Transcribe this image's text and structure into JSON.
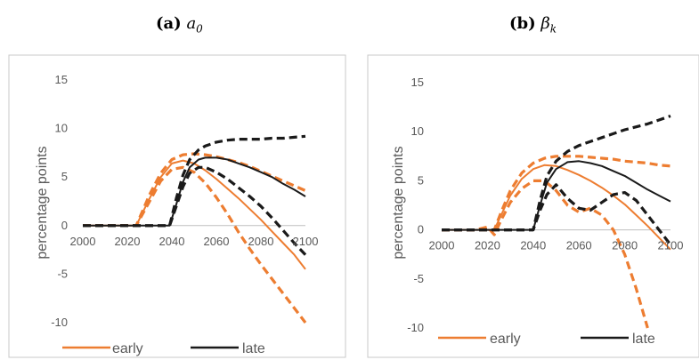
{
  "panels": {
    "a": {
      "label": "(a)",
      "symbol": "a",
      "sub": "0"
    },
    "b": {
      "label": "(b)",
      "symbol": "β",
      "sub": "k"
    }
  },
  "legend": {
    "early": "early",
    "late": "late"
  },
  "colors": {
    "early": "#ed7d31",
    "late": "#1a1a1a",
    "axis": "#bfbfbf",
    "frame": "#c8c8c8",
    "text": "#595959"
  },
  "chart_data": [
    {
      "type": "line",
      "title": "(a) a0",
      "ylabel": "percentage points",
      "xlim": [
        2000,
        2100
      ],
      "ylim": [
        -10,
        15
      ],
      "xticks": [
        2000,
        2020,
        2040,
        2060,
        2080,
        2100
      ],
      "yticks": [
        -10,
        -5,
        0,
        5,
        10,
        15
      ],
      "legend_position": "bottom",
      "series": [
        {
          "name": "early",
          "style": "solid",
          "color": "#ed7d31",
          "x": [
            2000,
            2024,
            2030,
            2035,
            2040,
            2045,
            2050,
            2055,
            2060,
            2065,
            2070,
            2075,
            2080,
            2085,
            2090,
            2095,
            2100
          ],
          "y": [
            0,
            0,
            2.8,
            5.0,
            6.4,
            6.7,
            6.4,
            5.7,
            4.8,
            3.8,
            2.8,
            1.7,
            0.6,
            -0.6,
            -1.8,
            -3.0,
            -4.5
          ]
        },
        {
          "name": "early",
          "style": "dashed",
          "color": "#ed7d31",
          "x": [
            2000,
            2024,
            2030,
            2035,
            2040,
            2045,
            2050,
            2055,
            2060,
            2065,
            2070,
            2075,
            2080,
            2085,
            2090,
            2095,
            2100
          ],
          "y": [
            0,
            0,
            3.2,
            5.4,
            6.8,
            7.3,
            7.4,
            7.3,
            7.1,
            6.8,
            6.5,
            6.1,
            5.6,
            5.1,
            4.6,
            4.1,
            3.6
          ]
        },
        {
          "name": "early",
          "style": "dashed",
          "color": "#ed7d31",
          "x": [
            2000,
            2024,
            2030,
            2035,
            2040,
            2045,
            2050,
            2055,
            2060,
            2065,
            2070,
            2075,
            2080,
            2085,
            2090,
            2095,
            2100
          ],
          "y": [
            0,
            0,
            2.5,
            4.6,
            5.8,
            6.0,
            5.5,
            4.4,
            2.9,
            1.2,
            -0.7,
            -2.4,
            -4.0,
            -5.5,
            -7.0,
            -8.5,
            -10.0
          ]
        },
        {
          "name": "late",
          "style": "solid",
          "color": "#1a1a1a",
          "x": [
            2000,
            2039,
            2042,
            2045,
            2048,
            2052,
            2055,
            2060,
            2065,
            2070,
            2075,
            2080,
            2085,
            2090,
            2095,
            2100
          ],
          "y": [
            0,
            0,
            2.2,
            4.5,
            6.0,
            6.8,
            7.0,
            7.0,
            6.8,
            6.4,
            6.0,
            5.5,
            5.0,
            4.3,
            3.7,
            3.0
          ]
        },
        {
          "name": "late",
          "style": "dashed",
          "color": "#1a1a1a",
          "x": [
            2000,
            2039,
            2042,
            2045,
            2048,
            2052,
            2055,
            2060,
            2065,
            2070,
            2075,
            2080,
            2085,
            2090,
            2095,
            2100
          ],
          "y": [
            0,
            0,
            2.8,
            5.2,
            6.8,
            7.8,
            8.2,
            8.6,
            8.8,
            8.9,
            8.9,
            8.9,
            9.0,
            9.0,
            9.1,
            9.2
          ]
        },
        {
          "name": "late",
          "style": "dashed",
          "color": "#1a1a1a",
          "x": [
            2000,
            2039,
            2042,
            2045,
            2048,
            2052,
            2055,
            2060,
            2065,
            2070,
            2075,
            2080,
            2085,
            2090,
            2095,
            2100
          ],
          "y": [
            0,
            0,
            2.0,
            4.0,
            5.4,
            6.0,
            6.0,
            5.5,
            4.8,
            3.9,
            3.0,
            2.0,
            0.8,
            -0.5,
            -1.8,
            -3.0
          ]
        }
      ]
    },
    {
      "type": "line",
      "title": "(b) βk",
      "ylabel": "percentage points",
      "xlim": [
        2000,
        2100
      ],
      "ylim": [
        -10,
        15
      ],
      "xticks": [
        2000,
        2020,
        2040,
        2060,
        2080,
        2100
      ],
      "yticks": [
        -10,
        -5,
        0,
        5,
        10,
        15
      ],
      "legend_position": "bottom",
      "series": [
        {
          "name": "early",
          "style": "solid",
          "color": "#ed7d31",
          "x": [
            2000,
            2023,
            2026,
            2030,
            2035,
            2040,
            2045,
            2050,
            2055,
            2060,
            2065,
            2070,
            2075,
            2080,
            2085,
            2090,
            2095,
            2100
          ],
          "y": [
            0,
            0,
            1.5,
            3.5,
            5.2,
            6.2,
            6.6,
            6.5,
            6.1,
            5.6,
            5.0,
            4.3,
            3.5,
            2.6,
            1.5,
            0.4,
            -0.8,
            -2.0
          ]
        },
        {
          "name": "early",
          "style": "dashed",
          "color": "#ed7d31",
          "x": [
            2000,
            2023,
            2026,
            2030,
            2035,
            2040,
            2045,
            2050,
            2055,
            2060,
            2065,
            2070,
            2075,
            2080,
            2085,
            2090,
            2095,
            2100
          ],
          "y": [
            0,
            0,
            1.8,
            4.0,
            5.8,
            6.8,
            7.3,
            7.5,
            7.5,
            7.5,
            7.4,
            7.3,
            7.2,
            7.0,
            6.9,
            6.8,
            6.6,
            6.5
          ]
        },
        {
          "name": "early",
          "style": "dashed",
          "color": "#ed7d31",
          "x": [
            2000,
            2015,
            2020,
            2023,
            2026,
            2030,
            2035,
            2040,
            2045,
            2050,
            2055,
            2060,
            2065,
            2070,
            2075,
            2080,
            2085,
            2090
          ],
          "y": [
            0,
            0,
            0.3,
            -0.5,
            1.0,
            2.8,
            4.2,
            5.0,
            5.0,
            4.0,
            2.5,
            1.8,
            2.2,
            1.5,
            0.0,
            -2.5,
            -6.0,
            -10.0
          ]
        },
        {
          "name": "late",
          "style": "solid",
          "color": "#1a1a1a",
          "x": [
            2000,
            2040,
            2043,
            2046,
            2050,
            2055,
            2060,
            2065,
            2070,
            2075,
            2080,
            2085,
            2090,
            2095,
            2100
          ],
          "y": [
            0,
            0,
            2.5,
            4.8,
            6.2,
            6.9,
            7.0,
            6.8,
            6.5,
            6.0,
            5.5,
            4.8,
            4.1,
            3.5,
            2.9
          ]
        },
        {
          "name": "late",
          "style": "dashed",
          "color": "#1a1a1a",
          "x": [
            2000,
            2040,
            2043,
            2046,
            2050,
            2055,
            2060,
            2065,
            2070,
            2075,
            2080,
            2085,
            2090,
            2095,
            2100
          ],
          "y": [
            0,
            0,
            3.0,
            5.5,
            7.0,
            8.0,
            8.6,
            9.0,
            9.4,
            9.8,
            10.2,
            10.5,
            10.8,
            11.2,
            11.6
          ]
        },
        {
          "name": "late",
          "style": "dashed",
          "color": "#1a1a1a",
          "x": [
            2000,
            2040,
            2043,
            2046,
            2050,
            2055,
            2060,
            2065,
            2070,
            2075,
            2080,
            2085,
            2090,
            2095,
            2100
          ],
          "y": [
            0,
            0,
            2.0,
            3.6,
            4.6,
            3.2,
            2.2,
            2.0,
            2.8,
            3.6,
            3.8,
            3.0,
            1.5,
            0.0,
            -1.5
          ]
        }
      ]
    }
  ]
}
